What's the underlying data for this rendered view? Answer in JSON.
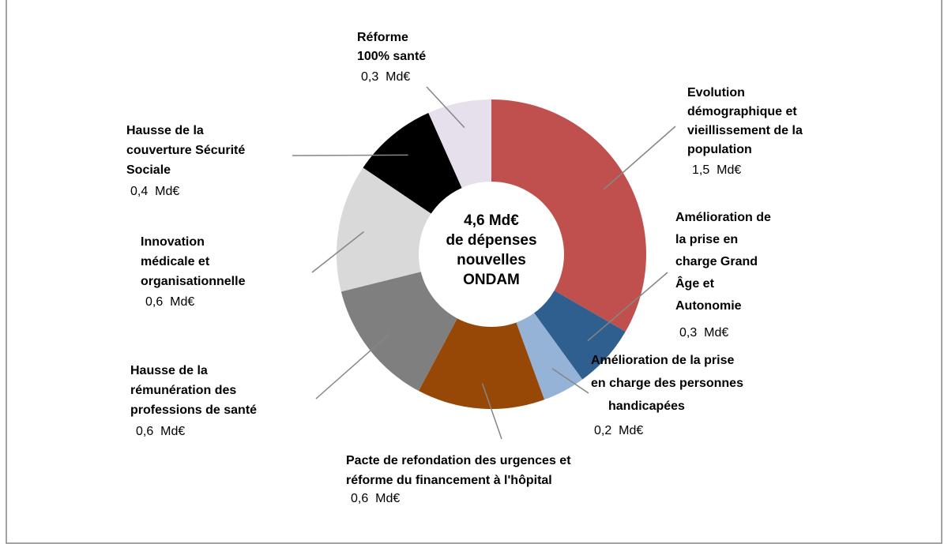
{
  "chart_data": {
    "type": "donut",
    "categories": [
      [
        "Evolution",
        "démographique et",
        "vieillissement de la",
        "population"
      ],
      [
        "Amélioration de",
        "la prise en",
        "charge Grand",
        "Âge et",
        "Autonomie"
      ],
      [
        "Amélioration de la prise",
        "en charge des personnes",
        "handicapées"
      ],
      [
        "Pacte de refondation des urgences et",
        "réforme du financement à l'hôpital"
      ],
      [
        "Hausse de la",
        "rémunération des",
        "professions de santé"
      ],
      [
        "Innovation",
        "médicale et",
        "organisationnelle"
      ],
      [
        "Hausse de la",
        "couverture Sécurité",
        "Sociale"
      ],
      [
        "Réforme",
        "100% santé"
      ]
    ],
    "values": [
      1.5,
      0.3,
      0.2,
      0.6,
      0.6,
      0.6,
      0.4,
      0.3
    ],
    "value_labels": [
      "1,5  Md€",
      "0,3  Md€",
      "0,2  Md€",
      "0,6  Md€",
      "0,6  Md€",
      "0,6  Md€",
      "0,4  Md€",
      "0,3  Md€"
    ],
    "colors": [
      "#c0504d",
      "#2f5f8f",
      "#95b3d7",
      "#974706",
      "#7f7f7f",
      "#d9d9d9",
      "#000000",
      "#e6e0ec"
    ],
    "center_label": [
      "4,6 Md€",
      "de dépenses",
      "nouvelles",
      "ONDAM"
    ]
  }
}
